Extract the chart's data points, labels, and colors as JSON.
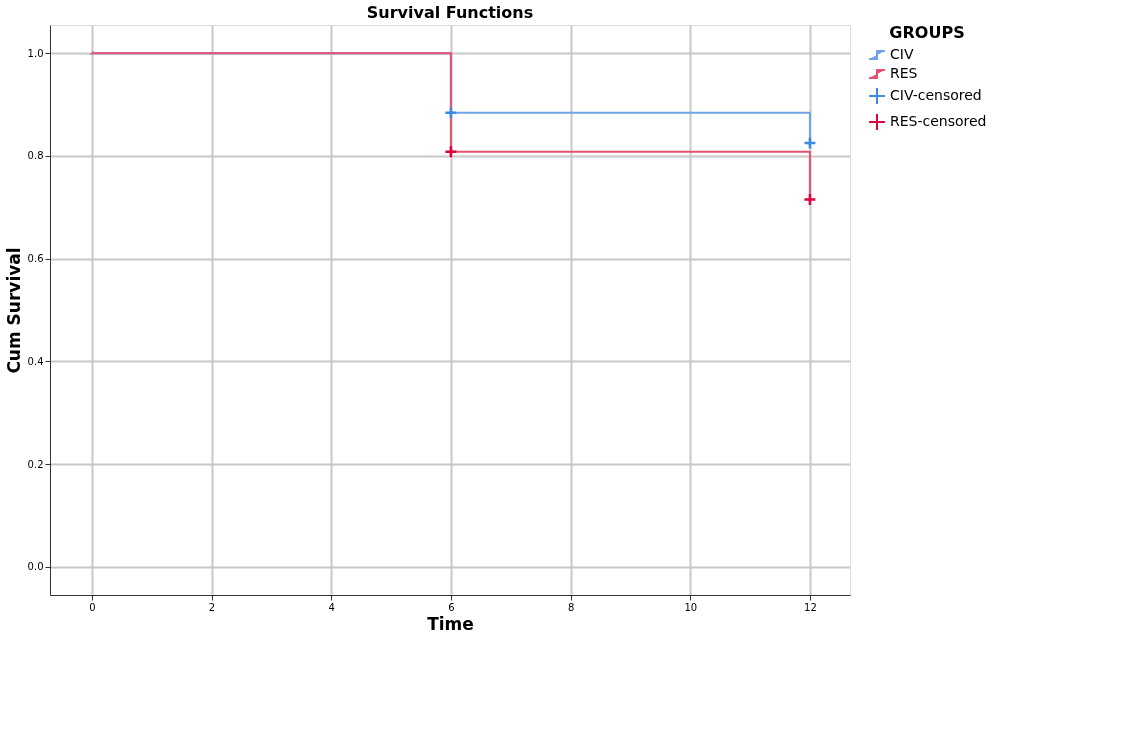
{
  "chart_data": {
    "type": "step",
    "title": "Survival Functions",
    "xlabel": "Time",
    "ylabel": "Cum Survival",
    "legend_title": "GROUPS",
    "series": [
      {
        "name": "CIV",
        "color": "#6fa3e8",
        "x": [
          0,
          6,
          12
        ],
        "values": [
          1.0,
          0.884,
          0.825
        ]
      },
      {
        "name": "RES",
        "color": "#e8506f",
        "x": [
          0,
          6,
          12
        ],
        "values": [
          1.0,
          0.808,
          0.715
        ]
      },
      {
        "name": "CIV-censored",
        "type": "scatter",
        "marker": "cross",
        "color": "#3d8be0",
        "x": [
          6,
          12
        ],
        "values": [
          0.884,
          0.825
        ]
      },
      {
        "name": "RES-censored",
        "type": "scatter",
        "marker": "cross",
        "color": "#e0003c",
        "x": [
          6,
          12
        ],
        "values": [
          0.808,
          0.715
        ]
      }
    ],
    "xlim": [
      -0.7,
      12.67
    ],
    "ylim": [
      -0.055,
      1.055
    ],
    "xticks": [
      0,
      2,
      4,
      6,
      8,
      10,
      12
    ],
    "yticks": [
      {
        "value": 0,
        "label": "0.0"
      },
      {
        "value": 0.2,
        "label": "0.2"
      },
      {
        "value": 0.4,
        "label": "0.4"
      },
      {
        "value": 0.6,
        "label": "0.6"
      },
      {
        "value": 0.8,
        "label": "0.8"
      },
      {
        "value": 1,
        "label": "1.0"
      }
    ],
    "grid": true,
    "legend": "top right",
    "line_style": "solid"
  }
}
